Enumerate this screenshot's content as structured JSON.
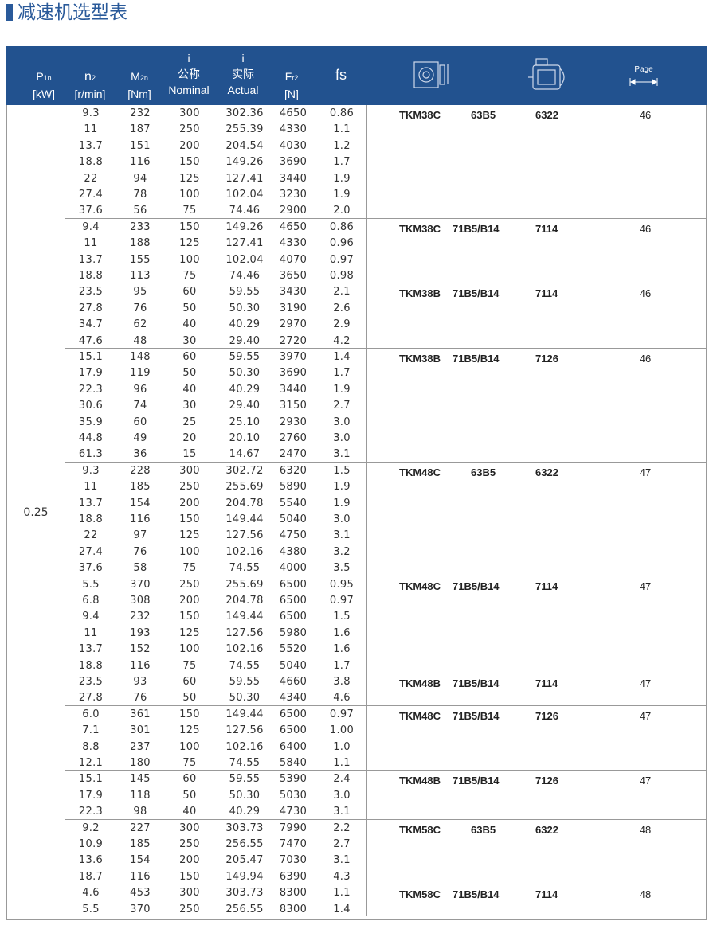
{
  "title": "减速机选型表",
  "header": {
    "p1n": "P",
    "p1n_sub": "1n",
    "p1n_unit": "[kW]",
    "n2": "n",
    "n2_sub": "2",
    "n2_unit": "[r/min]",
    "m2n": "M",
    "m2n_sub": "2n",
    "m2n_unit": "[Nm]",
    "i_nom_sym": "i",
    "i_nom_cn": "公称",
    "i_nom": "Nominal",
    "i_act_sym": "i",
    "i_act_cn": "实际",
    "i_act": "Actual",
    "fr2": "F",
    "fr2_sub": "r2",
    "fr2_unit": "[N]",
    "fs": "fs",
    "page": "Page",
    "icons": [
      "gearbox-icon",
      "motor-icon",
      "page-arrow-icon"
    ]
  },
  "colors": {
    "header_bg": "#22528f",
    "title": "#2a5a9a"
  },
  "p1n_value": "0.25",
  "groups": [
    {
      "model": "TKM38C",
      "motor": "63B5",
      "code": "6322",
      "page": "46",
      "rows": [
        [
          "9.3",
          "232",
          "300",
          "302.36",
          "4650",
          "0.86"
        ],
        [
          "11",
          "187",
          "250",
          "255.39",
          "4330",
          "1.1"
        ],
        [
          "13.7",
          "151",
          "200",
          "204.54",
          "4030",
          "1.2"
        ],
        [
          "18.8",
          "116",
          "150",
          "149.26",
          "3690",
          "1.7"
        ],
        [
          "22",
          "94",
          "125",
          "127.41",
          "3440",
          "1.9"
        ],
        [
          "27.4",
          "78",
          "100",
          "102.04",
          "3230",
          "1.9"
        ],
        [
          "37.6",
          "56",
          "75",
          "74.46",
          "2900",
          "2.0"
        ]
      ]
    },
    {
      "model": "TKM38C",
      "motor": "71B5/B14",
      "code": "7114",
      "page": "46",
      "rows": [
        [
          "9.4",
          "233",
          "150",
          "149.26",
          "4650",
          "0.86"
        ],
        [
          "11",
          "188",
          "125",
          "127.41",
          "4330",
          "0.96"
        ],
        [
          "13.7",
          "155",
          "100",
          "102.04",
          "4070",
          "0.97"
        ],
        [
          "18.8",
          "113",
          "75",
          "74.46",
          "3650",
          "0.98"
        ]
      ]
    },
    {
      "model": "TKM38B",
      "motor": "71B5/B14",
      "code": "7114",
      "page": "46",
      "rows": [
        [
          "23.5",
          "95",
          "60",
          "59.55",
          "3430",
          "2.1"
        ],
        [
          "27.8",
          "76",
          "50",
          "50.30",
          "3190",
          "2.6"
        ],
        [
          "34.7",
          "62",
          "40",
          "40.29",
          "2970",
          "2.9"
        ],
        [
          "47.6",
          "48",
          "30",
          "29.40",
          "2720",
          "4.2"
        ]
      ]
    },
    {
      "model": "TKM38B",
      "motor": "71B5/B14",
      "code": "7126",
      "page": "46",
      "rows": [
        [
          "15.1",
          "148",
          "60",
          "59.55",
          "3970",
          "1.4"
        ],
        [
          "17.9",
          "119",
          "50",
          "50.30",
          "3690",
          "1.7"
        ],
        [
          "22.3",
          "96",
          "40",
          "40.29",
          "3440",
          "1.9"
        ],
        [
          "30.6",
          "74",
          "30",
          "29.40",
          "3150",
          "2.7"
        ],
        [
          "35.9",
          "60",
          "25",
          "25.10",
          "2930",
          "3.0"
        ],
        [
          "44.8",
          "49",
          "20",
          "20.10",
          "2760",
          "3.0"
        ],
        [
          "61.3",
          "36",
          "15",
          "14.67",
          "2470",
          "3.1"
        ]
      ]
    },
    {
      "model": "TKM48C",
      "motor": "63B5",
      "code": "6322",
      "page": "47",
      "rows": [
        [
          "9.3",
          "228",
          "300",
          "302.72",
          "6320",
          "1.5"
        ],
        [
          "11",
          "185",
          "250",
          "255.69",
          "5890",
          "1.9"
        ],
        [
          "13.7",
          "154",
          "200",
          "204.78",
          "5540",
          "1.9"
        ],
        [
          "18.8",
          "116",
          "150",
          "149.44",
          "5040",
          "3.0"
        ],
        [
          "22",
          "97",
          "125",
          "127.56",
          "4750",
          "3.1"
        ],
        [
          "27.4",
          "76",
          "100",
          "102.16",
          "4380",
          "3.2"
        ],
        [
          "37.6",
          "58",
          "75",
          "74.55",
          "4000",
          "3.5"
        ]
      ]
    },
    {
      "model": "TKM48C",
      "motor": "71B5/B14",
      "code": "7114",
      "page": "47",
      "rows": [
        [
          "5.5",
          "370",
          "250",
          "255.69",
          "6500",
          "0.95"
        ],
        [
          "6.8",
          "308",
          "200",
          "204.78",
          "6500",
          "0.97"
        ],
        [
          "9.4",
          "232",
          "150",
          "149.44",
          "6500",
          "1.5"
        ],
        [
          "11",
          "193",
          "125",
          "127.56",
          "5980",
          "1.6"
        ],
        [
          "13.7",
          "152",
          "100",
          "102.16",
          "5520",
          "1.6"
        ],
        [
          "18.8",
          "116",
          "75",
          "74.55",
          "5040",
          "1.7"
        ]
      ]
    },
    {
      "model": "TKM48B",
      "motor": "71B5/B14",
      "code": "7114",
      "page": "47",
      "rows": [
        [
          "23.5",
          "93",
          "60",
          "59.55",
          "4660",
          "3.8"
        ],
        [
          "27.8",
          "76",
          "50",
          "50.30",
          "4340",
          "4.6"
        ]
      ]
    },
    {
      "model": "TKM48C",
      "motor": "71B5/B14",
      "code": "7126",
      "page": "47",
      "rows": [
        [
          "6.0",
          "361",
          "150",
          "149.44",
          "6500",
          "0.97"
        ],
        [
          "7.1",
          "301",
          "125",
          "127.56",
          "6500",
          "1.00"
        ],
        [
          "8.8",
          "237",
          "100",
          "102.16",
          "6400",
          "1.0"
        ],
        [
          "12.1",
          "180",
          "75",
          "74.55",
          "5840",
          "1.1"
        ]
      ]
    },
    {
      "model": "TKM48B",
      "motor": "71B5/B14",
      "code": "7126",
      "page": "47",
      "rows": [
        [
          "15.1",
          "145",
          "60",
          "59.55",
          "5390",
          "2.4"
        ],
        [
          "17.9",
          "118",
          "50",
          "50.30",
          "5030",
          "3.0"
        ],
        [
          "22.3",
          "98",
          "40",
          "40.29",
          "4730",
          "3.1"
        ]
      ]
    },
    {
      "model": "TKM58C",
      "motor": "63B5",
      "code": "6322",
      "page": "48",
      "rows": [
        [
          "9.2",
          "227",
          "300",
          "303.73",
          "7990",
          "2.2"
        ],
        [
          "10.9",
          "185",
          "250",
          "256.55",
          "7470",
          "2.7"
        ],
        [
          "13.6",
          "154",
          "200",
          "205.47",
          "7030",
          "3.1"
        ],
        [
          "18.7",
          "116",
          "150",
          "149.94",
          "6390",
          "4.3"
        ]
      ]
    },
    {
      "model": "TKM58C",
      "motor": "71B5/B14",
      "code": "7114",
      "page": "48",
      "rows": [
        [
          "4.6",
          "453",
          "300",
          "303.73",
          "8300",
          "1.1"
        ],
        [
          "5.5",
          "370",
          "250",
          "256.55",
          "8300",
          "1.4"
        ]
      ]
    }
  ]
}
